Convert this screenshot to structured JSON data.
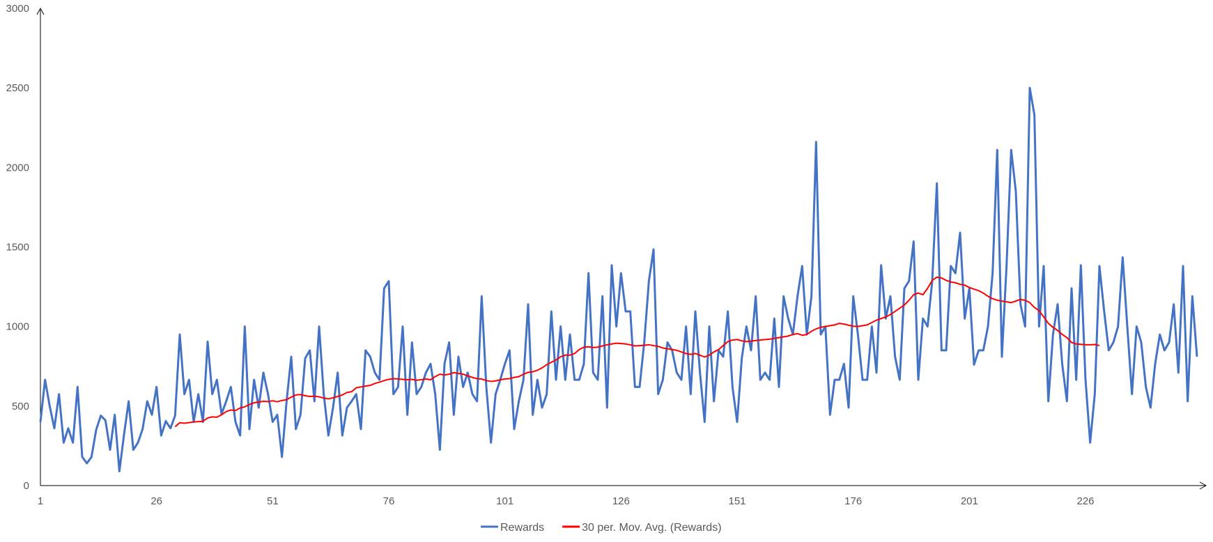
{
  "chart_data": {
    "type": "line",
    "title": "",
    "xlabel": "",
    "ylabel": "",
    "ylim": [
      0,
      3000
    ],
    "xlim": [
      1,
      250
    ],
    "x_tick_labels": [
      "1",
      "26",
      "51",
      "76",
      "101",
      "126",
      "151",
      "176",
      "201",
      "226"
    ],
    "y_tick_labels": [
      "0",
      "500",
      "1000",
      "1500",
      "2000",
      "2500",
      "3000"
    ],
    "grid": false,
    "legend_position": "bottom",
    "series": [
      {
        "name": "Rewards",
        "color": "#4472C4",
        "x_start": 1,
        "values": [
          400,
          665,
          500,
          360,
          575,
          270,
          360,
          270,
          620,
          180,
          140,
          180,
          350,
          440,
          410,
          225,
          445,
          90,
          320,
          530,
          225,
          270,
          355,
          530,
          445,
          620,
          315,
          405,
          360,
          440,
          950,
          575,
          665,
          400,
          575,
          400,
          905,
          575,
          665,
          450,
          530,
          620,
          400,
          315,
          1000,
          355,
          665,
          490,
          710,
          575,
          400,
          445,
          180,
          530,
          810,
          355,
          445,
          800,
          850,
          530,
          1000,
          575,
          315,
          490,
          710,
          315,
          490,
          530,
          575,
          355,
          850,
          810,
          710,
          665,
          1240,
          1285,
          575,
          620,
          1000,
          445,
          900,
          575,
          620,
          710,
          765,
          575,
          225,
          765,
          900,
          445,
          810,
          620,
          710,
          575,
          530,
          1190,
          620,
          270,
          575,
          665,
          765,
          850,
          355,
          530,
          665,
          1140,
          445,
          665,
          490,
          575,
          1095,
          665,
          1000,
          665,
          950,
          665,
          665,
          765,
          1335,
          710,
          665,
          1190,
          490,
          1385,
          1000,
          1335,
          1095,
          1095,
          620,
          620,
          900,
          1285,
          1485,
          575,
          665,
          900,
          850,
          710,
          665,
          1000,
          575,
          1095,
          710,
          400,
          1000,
          530,
          850,
          810,
          1095,
          620,
          400,
          800,
          1000,
          850,
          1190,
          665,
          710,
          665,
          1050,
          620,
          1190,
          1050,
          950,
          1190,
          1380,
          950,
          1190,
          2160,
          950,
          1000,
          445,
          665,
          665,
          765,
          490,
          1190,
          950,
          665,
          665,
          1000,
          710,
          1385,
          1050,
          1190,
          810,
          665,
          1240,
          1285,
          1535,
          665,
          1050,
          1000,
          1285,
          1900,
          850,
          850,
          1380,
          1335,
          1590,
          1050,
          1240,
          760,
          850,
          850,
          1000,
          1335,
          2110,
          810,
          1380,
          2110,
          1850,
          1140,
          1000,
          2500,
          2330,
          1000,
          1380,
          530,
          950,
          1140,
          760,
          530,
          1240,
          665,
          1385,
          665,
          270,
          575,
          1380,
          1100,
          850,
          900,
          1000,
          1435,
          1000,
          575,
          1000,
          900,
          620,
          490,
          765,
          950,
          850,
          900,
          1140,
          710,
          1380,
          530,
          1190,
          810
        ]
      },
      {
        "name": "30 per. Mov. Avg. (Rewards)",
        "color": "#FF0000",
        "x_start": 30,
        "values": [
          370,
          395,
          392,
          396,
          400,
          402,
          404,
          425,
          432,
          430,
          445,
          465,
          475,
          472,
          488,
          495,
          510,
          520,
          525,
          530,
          528,
          533,
          527,
          535,
          540,
          556,
          570,
          572,
          565,
          560,
          562,
          558,
          550,
          545,
          552,
          560,
          570,
          585,
          590,
          615,
          620,
          625,
          630,
          642,
          650,
          660,
          668,
          672,
          670,
          668,
          665,
          668,
          662,
          666,
          670,
          665,
          685,
          700,
          695,
          700,
          710,
          705,
          700,
          690,
          680,
          672,
          670,
          660,
          655,
          658,
          665,
          670,
          672,
          680,
          685,
          700,
          712,
          715,
          725,
          740,
          760,
          775,
          790,
          810,
          820,
          820,
          830,
          855,
          870,
          872,
          868,
          870,
          878,
          885,
          890,
          895,
          893,
          890,
          885,
          878,
          880,
          882,
          885,
          880,
          875,
          865,
          860,
          855,
          850,
          840,
          830,
          825,
          830,
          820,
          808,
          820,
          840,
          855,
          880,
          905,
          915,
          918,
          910,
          905,
          908,
          912,
          915,
          918,
          920,
          925,
          930,
          935,
          940,
          950,
          955,
          945,
          950,
          970,
          985,
          995,
          1000,
          1005,
          1010,
          1020,
          1015,
          1008,
          1002,
          1000,
          1005,
          1010,
          1025,
          1040,
          1050,
          1060,
          1075,
          1095,
          1115,
          1135,
          1165,
          1200,
          1210,
          1200,
          1240,
          1290,
          1310,
          1305,
          1290,
          1280,
          1275,
          1265,
          1260,
          1245,
          1235,
          1225,
          1210,
          1190,
          1175,
          1165,
          1160,
          1155,
          1150,
          1160,
          1170,
          1165,
          1150,
          1120,
          1100,
          1060,
          1020,
          995,
          975,
          950,
          930,
          900,
          890,
          888,
          885,
          885,
          887,
          880
        ]
      }
    ]
  }
}
